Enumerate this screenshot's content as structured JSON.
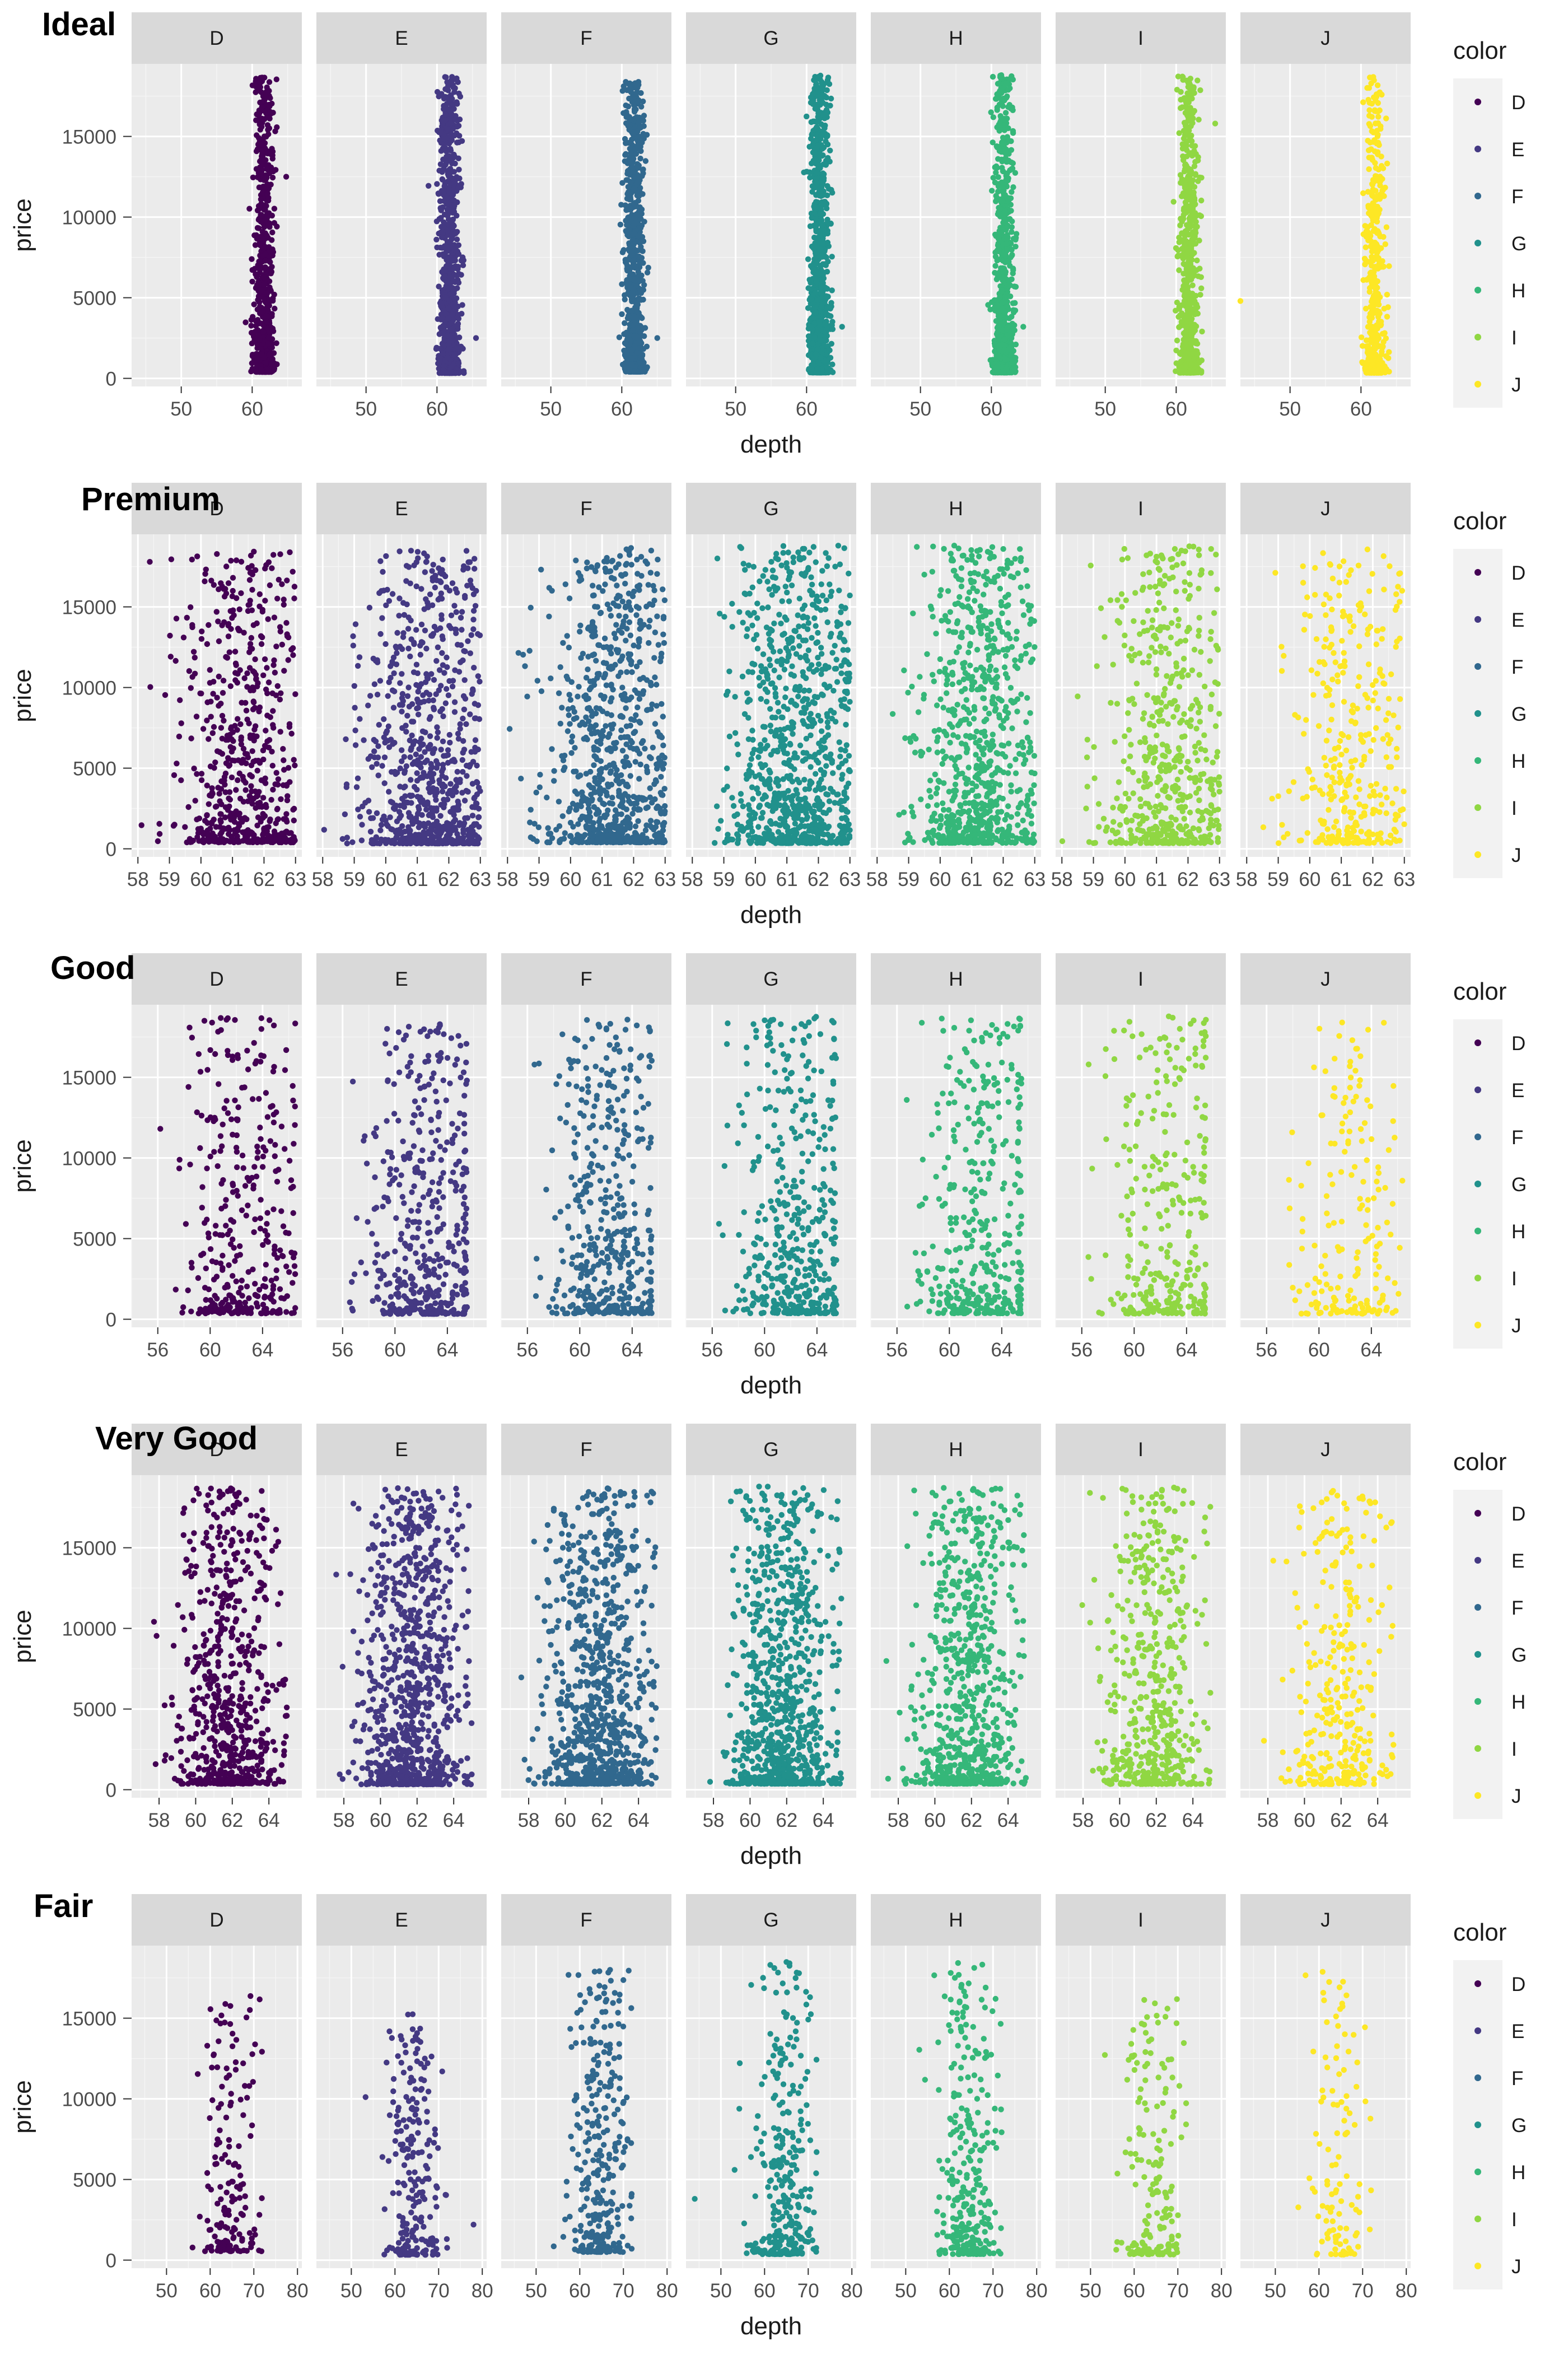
{
  "colors": {
    "panel_bg": "#ebebeb",
    "strip_bg": "#d9d9d9",
    "grid_major": "#ffffff",
    "legend_bg": "#f2f2f2",
    "text": "#1a1a1a",
    "tick_text": "#4d4d4d",
    "palette": [
      "#440154",
      "#443983",
      "#31688e",
      "#21918c",
      "#35b779",
      "#90d743",
      "#fde725"
    ]
  },
  "chart_data": [
    {
      "type": "scatter",
      "title": "Ideal",
      "facets": [
        "D",
        "E",
        "F",
        "G",
        "H",
        "I",
        "J"
      ],
      "xlabel": "depth",
      "ylabel": "price",
      "xlim": [
        43,
        67
      ],
      "xticks": [
        50,
        60
      ],
      "ylim": [
        -500,
        19500
      ],
      "yticks": [
        0,
        5000,
        10000,
        15000
      ],
      "legend": {
        "title": "color",
        "entries": [
          "D",
          "E",
          "F",
          "G",
          "H",
          "I",
          "J"
        ],
        "position": "right"
      },
      "series": [
        {
          "name": "D",
          "depth_mean": 61.7,
          "depth_sd": 0.7,
          "depth_range": [
            58.5,
            63.5
          ],
          "price_range": [
            400,
            18700
          ],
          "n_points": 700,
          "outliers": [
            [
              64.8,
              12500
            ]
          ]
        },
        {
          "name": "E",
          "depth_mean": 61.7,
          "depth_sd": 0.7,
          "depth_range": [
            58.5,
            63.8
          ],
          "price_range": [
            330,
            18700
          ],
          "n_points": 900,
          "outliers": [
            [
              65.5,
              2500
            ]
          ]
        },
        {
          "name": "F",
          "depth_mean": 61.7,
          "depth_sd": 0.7,
          "depth_range": [
            58.5,
            63.8
          ],
          "price_range": [
            410,
            18600
          ],
          "n_points": 900,
          "outliers": [
            [
              65.0,
              2500
            ]
          ]
        },
        {
          "name": "G",
          "depth_mean": 61.8,
          "depth_sd": 0.7,
          "depth_range": [
            59.0,
            63.7
          ],
          "price_range": [
            360,
            18800
          ],
          "n_points": 1000,
          "outliers": [
            [
              65.0,
              3200
            ]
          ]
        },
        {
          "name": "H",
          "depth_mean": 61.8,
          "depth_sd": 0.7,
          "depth_range": [
            59.0,
            63.6
          ],
          "price_range": [
            360,
            18800
          ],
          "n_points": 800,
          "outliers": [
            [
              64.5,
              3200
            ]
          ]
        },
        {
          "name": "I",
          "depth_mean": 61.8,
          "depth_sd": 0.7,
          "depth_range": [
            59.5,
            63.8
          ],
          "price_range": [
            350,
            18800
          ],
          "n_points": 650,
          "outliers": [
            [
              65.5,
              15800
            ]
          ]
        },
        {
          "name": "J",
          "depth_mean": 61.9,
          "depth_sd": 0.7,
          "depth_range": [
            59.5,
            64.0
          ],
          "price_range": [
            340,
            18700
          ],
          "n_points": 450,
          "outliers": [
            [
              43.0,
              4800
            ]
          ]
        }
      ]
    },
    {
      "type": "scatter",
      "title": "Premium",
      "facets": [
        "D",
        "E",
        "F",
        "G",
        "H",
        "I",
        "J"
      ],
      "xlabel": "depth",
      "ylabel": "price",
      "xlim": [
        57.8,
        63.2
      ],
      "xticks": [
        58,
        59,
        60,
        61,
        62,
        63
      ],
      "ylim": [
        -500,
        19500
      ],
      "yticks": [
        0,
        5000,
        10000,
        15000
      ],
      "legend": {
        "title": "color",
        "entries": [
          "D",
          "E",
          "F",
          "G",
          "H",
          "I",
          "J"
        ],
        "position": "right"
      },
      "series": [
        {
          "name": "D",
          "depth_mean": 61.3,
          "depth_sd": 1.0,
          "depth_range": [
            58,
            63
          ],
          "price_range": [
            400,
            18600
          ],
          "n_points": 600,
          "outliers": []
        },
        {
          "name": "E",
          "depth_mean": 61.3,
          "depth_sd": 1.0,
          "depth_range": [
            58,
            63
          ],
          "price_range": [
            330,
            18500
          ],
          "n_points": 800,
          "outliers": []
        },
        {
          "name": "F",
          "depth_mean": 61.3,
          "depth_sd": 1.0,
          "depth_range": [
            58,
            63
          ],
          "price_range": [
            400,
            18700
          ],
          "n_points": 800,
          "outliers": []
        },
        {
          "name": "G",
          "depth_mean": 61.3,
          "depth_sd": 1.0,
          "depth_range": [
            58,
            63
          ],
          "price_range": [
            350,
            18800
          ],
          "n_points": 900,
          "outliers": []
        },
        {
          "name": "H",
          "depth_mean": 61.3,
          "depth_sd": 1.0,
          "depth_range": [
            58,
            63
          ],
          "price_range": [
            370,
            18800
          ],
          "n_points": 800,
          "outliers": []
        },
        {
          "name": "I",
          "depth_mean": 61.3,
          "depth_sd": 1.0,
          "depth_range": [
            58,
            63
          ],
          "price_range": [
            350,
            18800
          ],
          "n_points": 550,
          "outliers": []
        },
        {
          "name": "J",
          "depth_mean": 61.3,
          "depth_sd": 1.0,
          "depth_range": [
            58,
            63
          ],
          "price_range": [
            350,
            18700
          ],
          "n_points": 350,
          "outliers": []
        }
      ]
    },
    {
      "type": "scatter",
      "title": "Good",
      "facets": [
        "D",
        "E",
        "F",
        "G",
        "H",
        "I",
        "J"
      ],
      "xlabel": "depth",
      "ylabel": "price",
      "xlim": [
        54,
        67
      ],
      "xticks": [
        56,
        60,
        64
      ],
      "ylim": [
        -500,
        19500
      ],
      "yticks": [
        0,
        5000,
        10000,
        15000
      ],
      "legend": {
        "title": "color",
        "entries": [
          "D",
          "E",
          "F",
          "G",
          "H",
          "I",
          "J"
        ],
        "position": "right"
      },
      "series": [
        {
          "name": "D",
          "depth_mean": 62.4,
          "depth_sd": 2.2,
          "depth_range": [
            55,
            66.5
          ],
          "price_range": [
            360,
            18700
          ],
          "n_points": 350,
          "outliers": []
        },
        {
          "name": "E",
          "depth_mean": 62.4,
          "depth_sd": 2.2,
          "depth_range": [
            56.5,
            65.5
          ],
          "price_range": [
            330,
            18300
          ],
          "n_points": 450,
          "outliers": []
        },
        {
          "name": "F",
          "depth_mean": 62.4,
          "depth_sd": 2.2,
          "depth_range": [
            56.5,
            65.5
          ],
          "price_range": [
            360,
            18700
          ],
          "n_points": 450,
          "outliers": []
        },
        {
          "name": "G",
          "depth_mean": 62.4,
          "depth_sd": 2.2,
          "depth_range": [
            56.5,
            65.5
          ],
          "price_range": [
            370,
            18800
          ],
          "n_points": 450,
          "outliers": []
        },
        {
          "name": "H",
          "depth_mean": 62.4,
          "depth_sd": 2.2,
          "depth_range": [
            56.5,
            65.5
          ],
          "price_range": [
            370,
            18800
          ],
          "n_points": 380,
          "outliers": []
        },
        {
          "name": "I",
          "depth_mean": 62.4,
          "depth_sd": 2.2,
          "depth_range": [
            56.5,
            65.5
          ],
          "price_range": [
            350,
            18800
          ],
          "n_points": 300,
          "outliers": []
        },
        {
          "name": "J",
          "depth_mean": 62.4,
          "depth_sd": 2.2,
          "depth_range": [
            56.5,
            66.5
          ],
          "price_range": [
            340,
            18500
          ],
          "n_points": 180,
          "outliers": []
        }
      ]
    },
    {
      "type": "scatter",
      "title": "Very Good",
      "facets": [
        "D",
        "E",
        "F",
        "G",
        "H",
        "I",
        "J"
      ],
      "xlabel": "depth",
      "ylabel": "price",
      "xlim": [
        56.5,
        65.8
      ],
      "xticks": [
        58,
        60,
        62,
        64
      ],
      "ylim": [
        -500,
        19500
      ],
      "yticks": [
        0,
        5000,
        10000,
        15000
      ],
      "legend": {
        "title": "color",
        "entries": [
          "D",
          "E",
          "F",
          "G",
          "H",
          "I",
          "J"
        ],
        "position": "right"
      },
      "series": [
        {
          "name": "D",
          "depth_mean": 61.8,
          "depth_sd": 1.4,
          "depth_range": [
            57,
            65
          ],
          "price_range": [
            360,
            18700
          ],
          "n_points": 650,
          "outliers": []
        },
        {
          "name": "E",
          "depth_mean": 61.8,
          "depth_sd": 1.4,
          "depth_range": [
            57,
            65
          ],
          "price_range": [
            330,
            18700
          ],
          "n_points": 850,
          "outliers": []
        },
        {
          "name": "F",
          "depth_mean": 61.8,
          "depth_sd": 1.4,
          "depth_range": [
            57,
            65
          ],
          "price_range": [
            360,
            18700
          ],
          "n_points": 850,
          "outliers": []
        },
        {
          "name": "G",
          "depth_mean": 61.8,
          "depth_sd": 1.4,
          "depth_range": [
            57,
            65
          ],
          "price_range": [
            370,
            18800
          ],
          "n_points": 850,
          "outliers": []
        },
        {
          "name": "H",
          "depth_mean": 61.8,
          "depth_sd": 1.4,
          "depth_range": [
            57,
            65
          ],
          "price_range": [
            370,
            18800
          ],
          "n_points": 700,
          "outliers": []
        },
        {
          "name": "I",
          "depth_mean": 61.8,
          "depth_sd": 1.4,
          "depth_range": [
            57,
            65
          ],
          "price_range": [
            350,
            18800
          ],
          "n_points": 500,
          "outliers": []
        },
        {
          "name": "J",
          "depth_mean": 61.8,
          "depth_sd": 1.4,
          "depth_range": [
            57,
            65
          ],
          "price_range": [
            340,
            18700
          ],
          "n_points": 320,
          "outliers": []
        }
      ]
    },
    {
      "type": "scatter",
      "title": "Fair",
      "facets": [
        "D",
        "E",
        "F",
        "G",
        "H",
        "I",
        "J"
      ],
      "xlabel": "depth",
      "ylabel": "price",
      "xlim": [
        42,
        81
      ],
      "xticks": [
        50,
        60,
        70,
        80
      ],
      "ylim": [
        -500,
        19500
      ],
      "yticks": [
        0,
        5000,
        10000,
        15000
      ],
      "legend": {
        "title": "color",
        "entries": [
          "D",
          "E",
          "F",
          "G",
          "H",
          "I",
          "J"
        ],
        "position": "right"
      },
      "series": [
        {
          "name": "D",
          "depth_mean": 64.5,
          "depth_sd": 3.5,
          "depth_range": [
            52,
            72
          ],
          "price_range": [
            550,
            16400
          ],
          "n_points": 160,
          "outliers": []
        },
        {
          "name": "E",
          "depth_mean": 64.5,
          "depth_sd": 3.5,
          "depth_range": [
            52,
            72
          ],
          "price_range": [
            330,
            15600
          ],
          "n_points": 220,
          "outliers": [
            [
              78.0,
              2200
            ]
          ]
        },
        {
          "name": "F",
          "depth_mean": 64.5,
          "depth_sd": 3.5,
          "depth_range": [
            52,
            72
          ],
          "price_range": [
            500,
            18000
          ],
          "n_points": 300,
          "outliers": []
        },
        {
          "name": "G",
          "depth_mean": 64.5,
          "depth_sd": 3.5,
          "depth_range": [
            53,
            72
          ],
          "price_range": [
            370,
            18500
          ],
          "n_points": 300,
          "outliers": [
            [
              44.0,
              3800
            ]
          ]
        },
        {
          "name": "H",
          "depth_mean": 64.5,
          "depth_sd": 3.5,
          "depth_range": [
            53,
            72
          ],
          "price_range": [
            370,
            18500
          ],
          "n_points": 290,
          "outliers": []
        },
        {
          "name": "I",
          "depth_mean": 64.5,
          "depth_sd": 3.5,
          "depth_range": [
            53,
            72
          ],
          "price_range": [
            350,
            16500
          ],
          "n_points": 170,
          "outliers": []
        },
        {
          "name": "J",
          "depth_mean": 64.5,
          "depth_sd": 3.5,
          "depth_range": [
            55,
            72
          ],
          "price_range": [
            340,
            18500
          ],
          "n_points": 110,
          "outliers": []
        }
      ]
    }
  ]
}
